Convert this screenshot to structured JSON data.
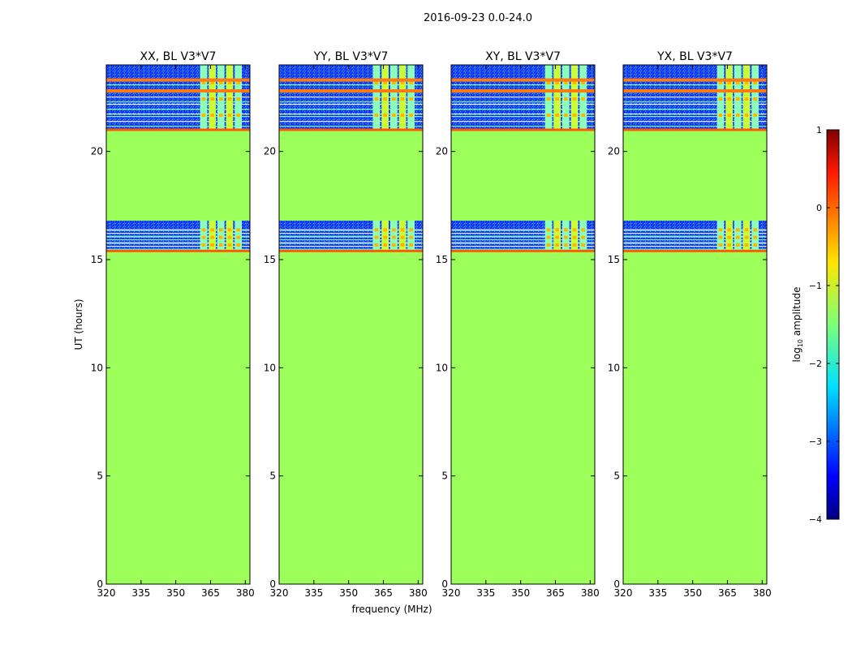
{
  "figure": {
    "suptitle": "2016-09-23 0.0-24.0"
  },
  "chart_data": {
    "type": "heatmap",
    "x_label": "frequency (MHz)",
    "y_label": "UT (hours)",
    "x_range": [
      320,
      382
    ],
    "y_range": [
      0,
      24
    ],
    "x_ticks": [
      320,
      335,
      350,
      365,
      380
    ],
    "y_ticks": [
      0,
      5,
      10,
      15,
      20
    ],
    "panels": [
      {
        "title": "XX, BL V3*V7",
        "rfi_start": 360.5,
        "y_label_shown": true
      },
      {
        "title": "YY, BL V3*V7",
        "rfi_start": 360.5,
        "y_label_shown": false
      },
      {
        "title": "XY, BL V3*V7",
        "rfi_start": 360.5,
        "y_label_shown": false
      },
      {
        "title": "YX, BL V3*V7",
        "rfi_start": 360.5,
        "y_label_shown": false
      }
    ],
    "flagged_blocks": [
      [
        0,
        15.4
      ],
      [
        16.8,
        21.0
      ]
    ],
    "data_blocks": [
      [
        15.4,
        16.8
      ],
      [
        21.0,
        24.0
      ]
    ],
    "strong_rfi_lines": [
      22.8,
      23.3
    ],
    "flag_level": -1.2,
    "colorbar": {
      "label": "log",
      "label_sub": "10",
      "label_rest": " amplitude",
      "range": [
        -4,
        1
      ],
      "ticks": [
        "−4",
        "−3",
        "−2",
        "−1",
        "0",
        "1"
      ],
      "colormap": "jet"
    }
  }
}
